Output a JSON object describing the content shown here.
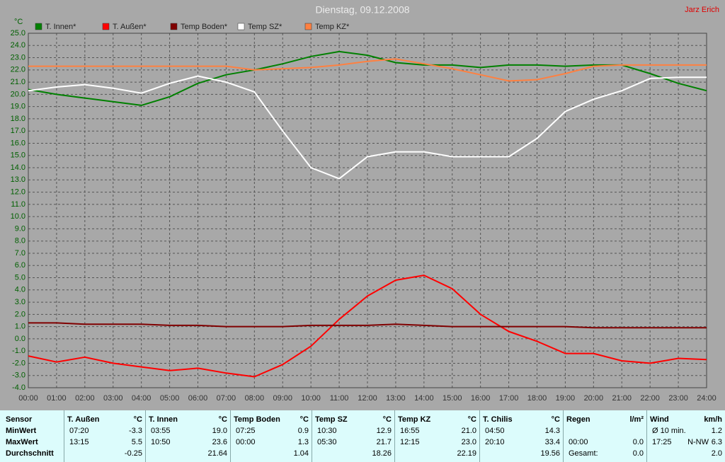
{
  "chart_data": {
    "type": "line",
    "title": "Dienstag, 09.12.2008",
    "author": "Jarz Erich",
    "y_label": "°C",
    "x": [
      0,
      1,
      2,
      3,
      4,
      5,
      6,
      7,
      8,
      9,
      10,
      11,
      12,
      13,
      14,
      15,
      16,
      17,
      18,
      19,
      20,
      21,
      22,
      23,
      24
    ],
    "xlim": [
      0,
      24
    ],
    "xticks": [
      {
        "value": 0,
        "label": "00:00"
      },
      {
        "value": 1,
        "label": "01:00"
      },
      {
        "value": 2,
        "label": "02:00"
      },
      {
        "value": 3,
        "label": "03:00"
      },
      {
        "value": 4,
        "label": "04:00"
      },
      {
        "value": 5,
        "label": "05:00"
      },
      {
        "value": 6,
        "label": "06:00"
      },
      {
        "value": 7,
        "label": "07:00"
      },
      {
        "value": 8,
        "label": "08:00"
      },
      {
        "value": 9,
        "label": "09:00"
      },
      {
        "value": 10,
        "label": "10:00"
      },
      {
        "value": 11,
        "label": "11:00"
      },
      {
        "value": 12,
        "label": "12:00"
      },
      {
        "value": 13,
        "label": "13:00"
      },
      {
        "value": 14,
        "label": "14:00"
      },
      {
        "value": 15,
        "label": "15:00"
      },
      {
        "value": 16,
        "label": "16:00"
      },
      {
        "value": 17,
        "label": "17:00"
      },
      {
        "value": 18,
        "label": "18:00"
      },
      {
        "value": 19,
        "label": "19:00"
      },
      {
        "value": 20,
        "label": "20:00"
      },
      {
        "value": 21,
        "label": "21:00"
      },
      {
        "value": 22,
        "label": "22:00"
      },
      {
        "value": 23,
        "label": "23:00"
      },
      {
        "value": 24,
        "label": "24:00"
      }
    ],
    "ylim": [
      -4,
      25
    ],
    "yticks": [
      {
        "value": 25,
        "label": "25.0"
      },
      {
        "value": 24,
        "label": "24.0"
      },
      {
        "value": 23,
        "label": "23.0"
      },
      {
        "value": 22,
        "label": "22.0"
      },
      {
        "value": 21,
        "label": "21.0"
      },
      {
        "value": 20,
        "label": "20.0"
      },
      {
        "value": 19,
        "label": "19.0"
      },
      {
        "value": 18,
        "label": "18.0"
      },
      {
        "value": 17,
        "label": "17.0"
      },
      {
        "value": 16,
        "label": "16.0"
      },
      {
        "value": 15,
        "label": "15.0"
      },
      {
        "value": 14,
        "label": "14.0"
      },
      {
        "value": 13,
        "label": "13.0"
      },
      {
        "value": 12,
        "label": "12.0"
      },
      {
        "value": 11,
        "label": "11.0"
      },
      {
        "value": 10,
        "label": "10.0"
      },
      {
        "value": 9,
        "label": "9.0"
      },
      {
        "value": 8,
        "label": "8.0"
      },
      {
        "value": 7,
        "label": "7.0"
      },
      {
        "value": 6,
        "label": "6.0"
      },
      {
        "value": 5,
        "label": "5.0"
      },
      {
        "value": 4,
        "label": "4.0"
      },
      {
        "value": 3,
        "label": "3.0"
      },
      {
        "value": 2,
        "label": "2.0"
      },
      {
        "value": 1,
        "label": "1.0"
      },
      {
        "value": 0,
        "label": "0.0"
      },
      {
        "value": -1,
        "label": "-1.0"
      },
      {
        "value": -2,
        "label": "-2.0"
      },
      {
        "value": -3,
        "label": "-3.0"
      },
      {
        "value": -4,
        "label": "-4.0"
      }
    ],
    "grid": true,
    "series": [
      {
        "name": "T. Innen*",
        "color": "#008000",
        "values": [
          20.4,
          20.0,
          19.7,
          19.4,
          19.1,
          19.8,
          20.9,
          21.6,
          22.0,
          22.5,
          23.1,
          23.5,
          23.2,
          22.6,
          22.4,
          22.4,
          22.2,
          22.4,
          22.4,
          22.3,
          22.4,
          22.4,
          21.7,
          20.9,
          20.3
        ]
      },
      {
        "name": "T. Außen*",
        "color": "#ff0000",
        "values": [
          -1.4,
          -1.9,
          -1.5,
          -2.0,
          -2.3,
          -2.6,
          -2.4,
          -2.8,
          -3.1,
          -2.1,
          -0.6,
          1.6,
          3.5,
          4.8,
          5.2,
          4.1,
          2.0,
          0.6,
          -0.2,
          -1.2,
          -1.2,
          -1.8,
          -2.0,
          -1.6,
          -1.7
        ]
      },
      {
        "name": "Temp Boden*",
        "color": "#800000",
        "values": [
          1.3,
          1.3,
          1.2,
          1.2,
          1.2,
          1.1,
          1.1,
          1.0,
          1.0,
          1.0,
          1.1,
          1.1,
          1.1,
          1.2,
          1.1,
          1.0,
          1.0,
          1.0,
          1.0,
          1.0,
          0.9,
          0.9,
          0.9,
          0.9,
          0.9
        ]
      },
      {
        "name": "Temp SZ*",
        "color": "#ffffff",
        "values": [
          20.3,
          20.6,
          20.8,
          20.5,
          20.1,
          20.9,
          21.5,
          21.0,
          20.2,
          17.0,
          14.0,
          13.1,
          14.9,
          15.3,
          15.3,
          14.9,
          14.9,
          14.9,
          16.4,
          18.6,
          19.6,
          20.3,
          21.3,
          21.4,
          21.4
        ]
      },
      {
        "name": "Temp KZ*",
        "color": "#ff8040",
        "values": [
          22.3,
          22.3,
          22.3,
          22.3,
          22.3,
          22.3,
          22.3,
          22.3,
          22.0,
          22.1,
          22.2,
          22.4,
          22.7,
          22.9,
          22.5,
          22.1,
          21.6,
          21.1,
          21.2,
          21.7,
          22.3,
          22.4,
          22.4,
          22.4,
          22.4
        ]
      }
    ]
  },
  "table": {
    "sensor_label": "Sensor",
    "row_labels": [
      "MinWert",
      "MaxWert",
      "Durchschnitt"
    ],
    "columns": [
      {
        "name": "T. Außen",
        "unit": "°C",
        "min": {
          "time": "07:20",
          "value": "-3.3"
        },
        "max": {
          "time": "13:15",
          "value": "5.5"
        },
        "avg": {
          "value": "-0.25"
        }
      },
      {
        "name": "T. Innen",
        "unit": "°C",
        "min": {
          "time": "03:55",
          "value": "19.0"
        },
        "max": {
          "time": "10:50",
          "value": "23.6"
        },
        "avg": {
          "value": "21.64"
        }
      },
      {
        "name": "Temp Boden",
        "unit": "°C",
        "min": {
          "time": "07:25",
          "value": "0.9"
        },
        "max": {
          "time": "00:00",
          "value": "1.3"
        },
        "avg": {
          "value": "1.04"
        }
      },
      {
        "name": "Temp SZ",
        "unit": "°C",
        "min": {
          "time": "10:30",
          "value": "12.9"
        },
        "max": {
          "time": "05:30",
          "value": "21.7"
        },
        "avg": {
          "value": "18.26"
        }
      },
      {
        "name": "Temp KZ",
        "unit": "°C",
        "min": {
          "time": "16:55",
          "value": "21.0"
        },
        "max": {
          "time": "12:15",
          "value": "23.0"
        },
        "avg": {
          "value": "22.19"
        }
      },
      {
        "name": "T. Chilis",
        "unit": "°C",
        "min": {
          "time": "04:50",
          "value": "14.3"
        },
        "max": {
          "time": "20:10",
          "value": "33.4"
        },
        "avg": {
          "value": "19.56"
        }
      },
      {
        "name": "Regen",
        "unit": "l/m²",
        "max": {
          "time": "00:00",
          "value": "0.0"
        },
        "avg": {
          "time": "Gesamt:",
          "value": "0.0"
        }
      },
      {
        "name": "Wind",
        "unit": "km/h",
        "min": {
          "time": "Ø 10 min.",
          "value": "1.2"
        },
        "max": {
          "time": "17:25",
          "extra": "N-NW",
          "value": "6.3"
        },
        "avg": {
          "value": "2.0"
        }
      }
    ]
  }
}
